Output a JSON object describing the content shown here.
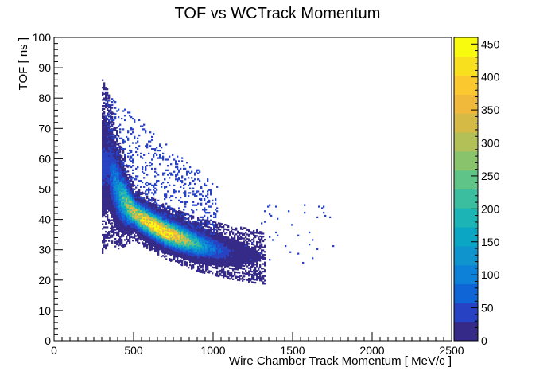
{
  "chart_data": {
    "type": "heatmap",
    "title": "TOF vs WCTrack Momentum",
    "xlabel": "Wire Chamber Track Momentum [ MeV/c ]",
    "ylabel": "TOF [ ns ]",
    "xlim": [
      0,
      2500
    ],
    "ylim": [
      0,
      100
    ],
    "x_ticks": [
      0,
      500,
      1000,
      1500,
      2000,
      2500
    ],
    "y_ticks": [
      0,
      10,
      20,
      30,
      40,
      50,
      60,
      70,
      80,
      90,
      100
    ],
    "colorbar": {
      "range": [
        0,
        460
      ],
      "ticks": [
        0,
        50,
        100,
        150,
        200,
        250,
        300,
        350,
        400,
        450
      ],
      "palette": [
        "#352a87",
        "#2743c3",
        "#1065d6",
        "#0d80d8",
        "#1094ce",
        "#0ca6c5",
        "#1cb4b4",
        "#3abe9f",
        "#5fc488",
        "#89c46d",
        "#b3c057",
        "#d5ba45",
        "#f0b93b",
        "#fcc830",
        "#f9e01f",
        "#f9fb0e"
      ]
    },
    "band": {
      "description_points_momentum": [
        340,
        400,
        450,
        500,
        550,
        600,
        650,
        700,
        750,
        800,
        850,
        900,
        950,
        1000,
        1050,
        1100,
        1150,
        1200,
        1250,
        1300
      ],
      "tof_center": [
        57,
        49,
        45,
        42,
        40,
        38.5,
        37,
        35.5,
        34.5,
        33.5,
        32.5,
        31.5,
        30.8,
        30.2,
        29.6,
        29,
        28.6,
        28.2,
        27.8,
        27.4
      ],
      "peak_counts": [
        40,
        140,
        260,
        330,
        380,
        420,
        450,
        440,
        400,
        330,
        250,
        180,
        120,
        80,
        50,
        30,
        18,
        10,
        6,
        3
      ]
    },
    "grid": false,
    "legend": "colorbar-right"
  }
}
